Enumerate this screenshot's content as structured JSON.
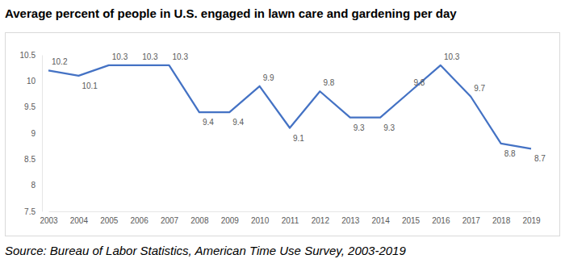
{
  "chart_data": {
    "type": "line",
    "title": "Average percent of people in U.S. engaged in lawn care and gardening per day",
    "subtitle": "Source: Bureau of Labor Statistics, American Time Use Survey, 2003-2019",
    "categories": [
      "2003",
      "2004",
      "2005",
      "2006",
      "2007",
      "2008",
      "2009",
      "2010",
      "2011",
      "2012",
      "2013",
      "2014",
      "2015",
      "2016",
      "2017",
      "2018",
      "2019"
    ],
    "values": [
      10.2,
      10.1,
      10.3,
      10.3,
      10.3,
      9.4,
      9.4,
      9.9,
      9.1,
      9.8,
      9.3,
      9.3,
      9.8,
      10.3,
      9.7,
      8.8,
      8.7
    ],
    "color": "#4472c4",
    "ylim": [
      7.5,
      10.5
    ],
    "yticks": [
      7.5,
      8,
      8.5,
      9,
      9.5,
      10,
      10.5
    ],
    "grid": false,
    "data_labels": true
  }
}
